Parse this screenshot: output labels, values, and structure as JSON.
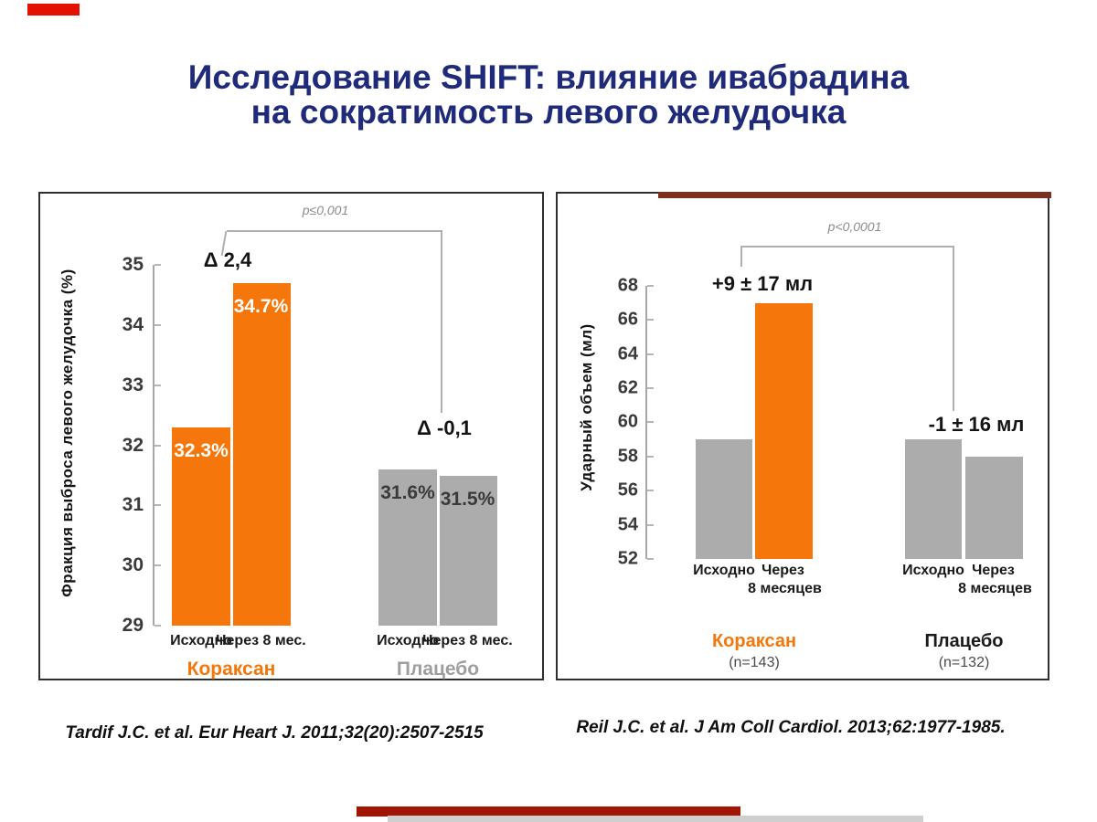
{
  "title": {
    "line1": "Исследование SHIFT: влияние ивабрадина",
    "line2": "на сократимость левого желудочка"
  },
  "colors": {
    "title": "#1f2a7b",
    "orange": "#f5760a",
    "gray_bar": "#acacac",
    "red_accent": "#e41000",
    "maroon_accent": "#7b2f1c",
    "bottom_red": "#a11505",
    "bottom_gray": "#cfcfcf"
  },
  "charts": [
    {
      "id": "lvef",
      "type": "bar",
      "p_label": "p≤0,001",
      "annotations": [
        "Δ 2,4",
        "Δ -0,1"
      ],
      "y_axis_title": "Фракция выброса левого желудочка (%)",
      "ylim": [
        29,
        35
      ],
      "y_ticks": [
        35,
        34,
        33,
        32,
        31,
        30,
        29
      ],
      "groups": [
        {
          "name": "Кораксан",
          "label_color": "#f5760a",
          "bar_color": "#f5760a",
          "value_color": "#ffffff",
          "bars": [
            {
              "x": "Исходно",
              "value": 32.3,
              "display": "32.3%"
            },
            {
              "x": "Через 8 мес.",
              "value": 34.7,
              "display": "34.7%"
            }
          ]
        },
        {
          "name": "Плацебо",
          "label_color": "#9e9e9e",
          "bar_color": "#acacac",
          "value_color": "#3a3a3a",
          "bars": [
            {
              "x": "Исходно",
              "value": 31.6,
              "display": "31.6%"
            },
            {
              "x": "Через 8 мес.",
              "value": 31.5,
              "display": "31.5%"
            }
          ]
        }
      ],
      "citation": "Tardif J.C. et al. Eur Heart J. 2011;32(20):2507-2515"
    },
    {
      "id": "sv",
      "type": "bar",
      "p_label": "p<0,0001",
      "annotations": [
        "+9 ±  17 мл",
        "-1 ±  16 мл"
      ],
      "y_axis_title": "Ударный объем (мл)",
      "ylim": [
        52,
        68
      ],
      "y_ticks": [
        68,
        66,
        64,
        62,
        60,
        58,
        56,
        54,
        52
      ],
      "groups": [
        {
          "name": "Кораксан",
          "n": "(n=143)",
          "label_color": "#f5760a",
          "value_color": "",
          "bars": [
            {
              "x": "Исходно",
              "value": 59,
              "color": "#acacac"
            },
            {
              "x": "Через\n8 месяцев",
              "value": 67,
              "color": "#f5760a"
            }
          ]
        },
        {
          "name": "Плацебо",
          "n": "(n=132)",
          "label_color": "#1a1a1a",
          "value_color": "",
          "bars": [
            {
              "x": "Исходно",
              "value": 59,
              "color": "#acacac"
            },
            {
              "x": "Через\n8 месяцев",
              "value": 58,
              "color": "#acacac"
            }
          ]
        }
      ],
      "citation": "Reil J.C. et al. J Am Coll Cardiol. 2013;62:1977-1985."
    }
  ]
}
